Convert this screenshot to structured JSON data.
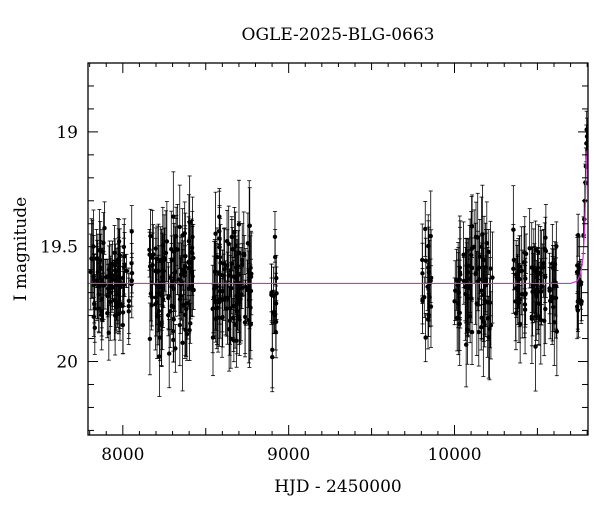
{
  "chart_data": {
    "type": "scatter",
    "title": "OGLE-2025-BLG-0663",
    "xlabel": "HJD - 2450000",
    "ylabel": "I magnitude",
    "xlim": [
      7790,
      10805
    ],
    "ylim": [
      20.32,
      18.7
    ],
    "y_inverted": true,
    "xticks": [
      8000,
      9000,
      10000
    ],
    "yticks": [
      19,
      19.5,
      20
    ],
    "grid": false,
    "legend": "none",
    "colors": {
      "data": "#000000",
      "model": "#cc33cc"
    },
    "baseline_mag": 19.66,
    "model": {
      "x": [
        7790,
        10700,
        10740,
        10760,
        10775,
        10785,
        10790,
        10795,
        10800,
        10805
      ],
      "y": [
        19.66,
        19.66,
        19.65,
        19.62,
        19.55,
        19.42,
        19.28,
        19.12,
        19.08,
        19.1
      ]
    },
    "seasons": [
      {
        "start": 7800,
        "end": 8060,
        "n": 95,
        "scatter": 0.1,
        "err": 0.12
      },
      {
        "start": 8160,
        "end": 8430,
        "n": 110,
        "scatter": 0.12,
        "err": 0.14
      },
      {
        "start": 8540,
        "end": 8780,
        "n": 100,
        "scatter": 0.12,
        "err": 0.14
      },
      {
        "start": 8895,
        "end": 8930,
        "n": 16,
        "scatter": 0.12,
        "err": 0.12
      },
      {
        "start": 9800,
        "end": 9860,
        "n": 20,
        "scatter": 0.13,
        "err": 0.14
      },
      {
        "start": 9990,
        "end": 10230,
        "n": 75,
        "scatter": 0.13,
        "err": 0.16
      },
      {
        "start": 10350,
        "end": 10620,
        "n": 80,
        "scatter": 0.11,
        "err": 0.14
      },
      {
        "start": 10735,
        "end": 10770,
        "n": 14,
        "scatter": 0.1,
        "err": 0.12
      }
    ],
    "rise_points": {
      "x": [
        10778,
        10782,
        10786,
        10789,
        10792,
        10795,
        10797,
        10799,
        10801,
        10803
      ],
      "y": [
        19.45,
        19.38,
        19.3,
        19.22,
        19.15,
        19.05,
        18.99,
        19.02,
        19.08,
        19.15
      ]
    }
  }
}
